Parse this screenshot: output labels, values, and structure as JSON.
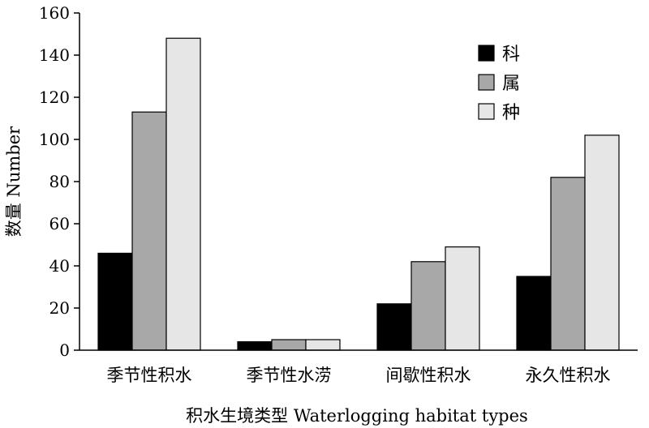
{
  "chart_data": {
    "type": "bar",
    "categories": [
      "季节性积水",
      "季节性水涝",
      "间歇性积水",
      "永久性积水"
    ],
    "series": [
      {
        "name": "科",
        "values": [
          46,
          4,
          22,
          35
        ],
        "color": "#000000"
      },
      {
        "name": "属",
        "values": [
          113,
          5,
          42,
          82
        ],
        "color": "#a8a8a8"
      },
      {
        "name": "种",
        "values": [
          148,
          5,
          49,
          102
        ],
        "color": "#e6e6e6"
      }
    ],
    "title": "",
    "xlabel": "积水生境类型 Waterlogging habitat types",
    "ylabel": "数量 Number",
    "ylim": [
      0,
      160
    ],
    "yticks": [
      0,
      20,
      40,
      60,
      80,
      100,
      120,
      140,
      160
    ],
    "grid": false,
    "legend_position": "top-right"
  }
}
